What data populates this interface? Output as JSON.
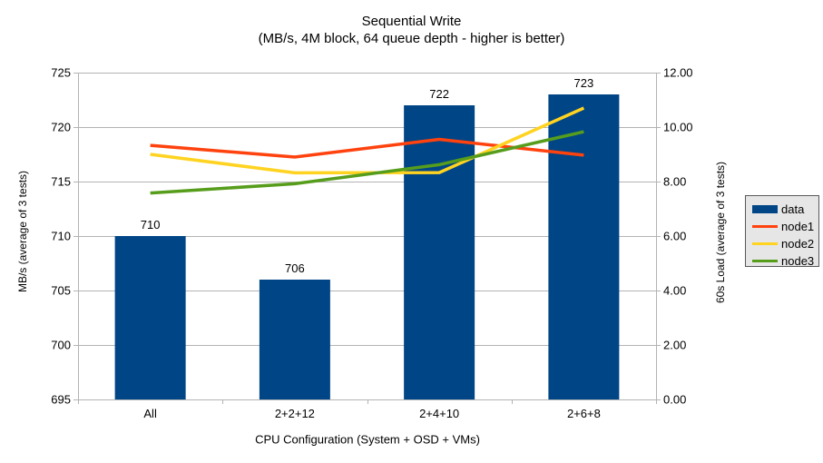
{
  "chart_data": {
    "type": "combo-bar-line",
    "title": "Sequential Write",
    "subtitle": "(MB/s, 4M block, 64 queue depth - higher is better)",
    "categories": [
      "All",
      "2+2+12",
      "2+4+10",
      "2+6+8"
    ],
    "series": [
      {
        "name": "data",
        "type": "bar",
        "axis": "left",
        "color": "#004586",
        "values": [
          710,
          706,
          722,
          723
        ],
        "labels": [
          "710",
          "706",
          "722",
          "723"
        ]
      },
      {
        "name": "node1",
        "type": "line",
        "axis": "right",
        "color": "#FF420E",
        "values": [
          9.33,
          8.9,
          9.55,
          8.97
        ]
      },
      {
        "name": "node2",
        "type": "line",
        "axis": "right",
        "color": "#FFD320",
        "values": [
          9.0,
          8.32,
          8.33,
          10.7
        ]
      },
      {
        "name": "node3",
        "type": "line",
        "axis": "right",
        "color": "#579D1C",
        "values": [
          7.58,
          7.92,
          8.62,
          9.83
        ]
      }
    ],
    "left_axis": {
      "title": "MB/s (average of 3 tests)",
      "min": 695,
      "max": 725,
      "step": 5,
      "ticks": [
        "695",
        "700",
        "705",
        "710",
        "715",
        "720",
        "725"
      ]
    },
    "right_axis": {
      "title": "60s Load (average of 3 tests)",
      "min": 0,
      "max": 12,
      "step": 2,
      "ticks": [
        "0.00",
        "2.00",
        "4.00",
        "6.00",
        "8.00",
        "10.00",
        "12.00"
      ]
    },
    "x_axis": {
      "title": "CPU Configuration (System + OSD + VMs)"
    },
    "legend": {
      "position": "right",
      "items": [
        "data",
        "node1",
        "node2",
        "node3"
      ]
    },
    "grid": "horizontal",
    "colors": {
      "grid": "#b3b3b3",
      "axis": "#b3b3b3",
      "text": "#000000",
      "background": "#ffffff",
      "legend_bg": "#e6e6e6",
      "legend_border": "#595959"
    }
  }
}
